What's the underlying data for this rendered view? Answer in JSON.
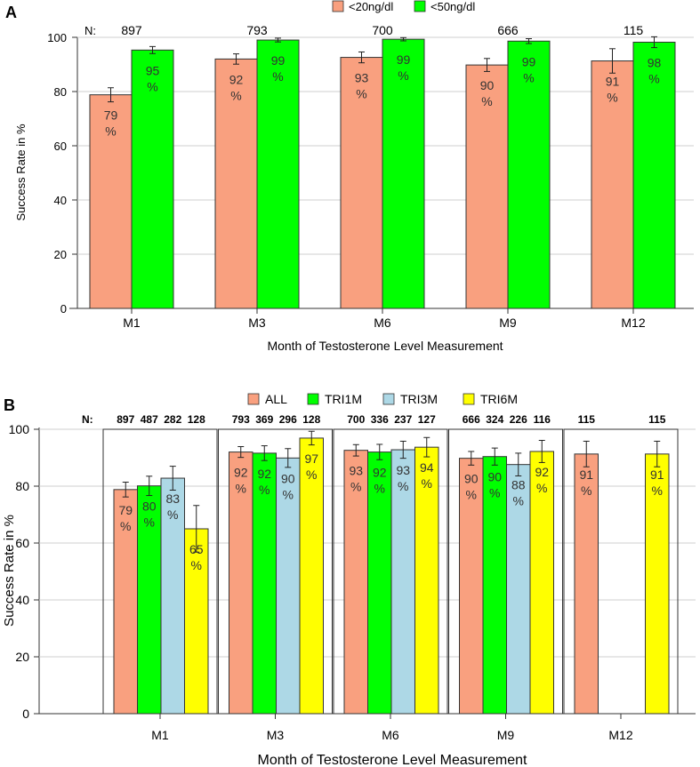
{
  "colors": {
    "salmon": "#F9A07F",
    "green": "#00FF00",
    "lightblue": "#ADD8E6",
    "yellow": "#FFFF00",
    "grid": "#cfcfcf"
  },
  "chart_data": [
    {
      "panel_label": "A",
      "type": "bar",
      "ylabel": "Success Rate in %",
      "xlabel": "Month of Testosterone Level Measurement",
      "ylim": [
        0,
        100
      ],
      "yticks": [
        "0",
        "20",
        "40",
        "60",
        "80",
        "100"
      ],
      "n_prefix": "N:",
      "categories": [
        "M1",
        "M3",
        "M6",
        "M9",
        "M12"
      ],
      "n_labels": [
        "897",
        "793",
        "700",
        "666",
        "115"
      ],
      "series": [
        {
          "name": "<20ng/dl",
          "color": "#F9A07F",
          "values": [
            78.8,
            92.0,
            92.6,
            89.8,
            91.3
          ],
          "err": [
            2.6,
            1.9,
            2.0,
            2.4,
            4.5
          ],
          "pct_labels": [
            "79",
            "92",
            "93",
            "90",
            "91"
          ]
        },
        {
          "name": "<50ng/dl",
          "color": "#00FF00",
          "values": [
            95.3,
            99.0,
            99.3,
            98.6,
            98.2
          ],
          "err": [
            1.3,
            0.7,
            0.6,
            0.9,
            2.0
          ],
          "pct_labels": [
            "95",
            "99",
            "99",
            "99",
            "98"
          ]
        }
      ]
    },
    {
      "panel_label": "B",
      "type": "bar",
      "ylabel": "Success Rate in %",
      "xlabel": "Month of Testosterone Level Measurement",
      "ylim": [
        0,
        100
      ],
      "yticks": [
        "0",
        "20",
        "40",
        "60",
        "80",
        "100"
      ],
      "n_prefix": "N:",
      "categories": [
        "M1",
        "M3",
        "M6",
        "M9",
        "M12"
      ],
      "n_labels": [
        [
          "897",
          "487",
          "282",
          "128"
        ],
        [
          "793",
          "369",
          "296",
          "128"
        ],
        [
          "700",
          "336",
          "237",
          "127"
        ],
        [
          "666",
          "324",
          "226",
          "116"
        ],
        [
          "115",
          "",
          "",
          "115"
        ]
      ],
      "series": [
        {
          "name": "ALL",
          "color": "#F9A07F",
          "values": [
            78.8,
            92.0,
            92.6,
            89.8,
            91.3
          ],
          "err": [
            2.6,
            1.9,
            2.0,
            2.4,
            4.5
          ],
          "pct_labels": [
            "79",
            "92",
            "93",
            "90",
            "91"
          ]
        },
        {
          "name": "TRI1M",
          "color": "#00FF00",
          "values": [
            80.1,
            91.6,
            92.0,
            90.4,
            null
          ],
          "err": [
            3.4,
            2.6,
            2.7,
            3.0,
            null
          ],
          "pct_labels": [
            "80",
            "92",
            "92",
            "90",
            ""
          ]
        },
        {
          "name": "TRI3M",
          "color": "#ADD8E6",
          "values": [
            82.8,
            89.9,
            92.8,
            87.6,
            null
          ],
          "err": [
            4.2,
            3.3,
            3.0,
            4.0,
            null
          ],
          "pct_labels": [
            "83",
            "90",
            "93",
            "88",
            ""
          ]
        },
        {
          "name": "TRI6M",
          "color": "#FFFF00",
          "values": [
            65.0,
            96.9,
            93.7,
            92.2,
            91.3
          ],
          "err": [
            8.2,
            2.4,
            3.4,
            3.9,
            4.5
          ],
          "pct_labels": [
            "65",
            "97",
            "94",
            "92",
            "91"
          ]
        }
      ]
    }
  ]
}
